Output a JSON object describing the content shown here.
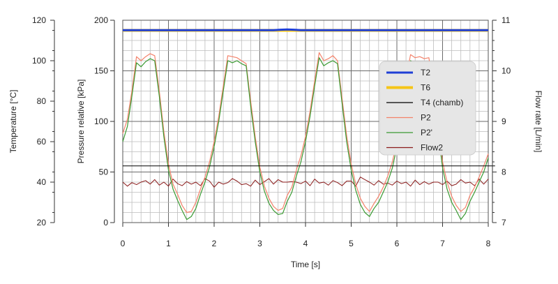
{
  "chart_data": {
    "type": "line",
    "xlabel": "Time [s]",
    "x_ticks": [
      0,
      1,
      2,
      3,
      4,
      5,
      6,
      7,
      8
    ],
    "xlim": [
      0,
      8
    ],
    "grid": true,
    "legend_placement": "right",
    "axes": {
      "pressure": {
        "label": "Pressure relative [kPa]",
        "ylim": [
          0,
          200
        ],
        "ticks": [
          0,
          50,
          100,
          150,
          200
        ],
        "side": "left-inner"
      },
      "temperature": {
        "label": "Temperature [°C]",
        "ylim": [
          20,
          120
        ],
        "ticks": [
          20,
          40,
          60,
          80,
          100,
          120
        ],
        "side": "left-outer"
      },
      "flow": {
        "label": "Flow rate [L/min]",
        "ylim": [
          7,
          11
        ],
        "ticks": [
          7,
          8,
          9,
          10,
          11
        ],
        "side": "right"
      }
    },
    "series": [
      {
        "name": "T2",
        "axis": "temperature",
        "color": "#1f3fd6",
        "width": 3,
        "x": [
          0,
          3.3,
          3.45,
          3.6,
          3.75,
          3.9,
          8
        ],
        "y": [
          115.1,
          115.1,
          115.3,
          115.4,
          115.3,
          115.1,
          115.1
        ]
      },
      {
        "name": "T6",
        "axis": "temperature",
        "color": "#f5c518",
        "width": 4,
        "x": [
          0,
          8
        ],
        "y": [
          115.0,
          115.0
        ]
      },
      {
        "name": "T4 (chamb)",
        "axis": "pressure",
        "color": "#000000",
        "width": 1,
        "x": [
          0,
          8.15
        ],
        "y": [
          56,
          56
        ]
      },
      {
        "name": "P2",
        "axis": "pressure",
        "color": "#f4826a",
        "width": 1.2,
        "x": [
          0,
          0.1,
          0.2,
          0.3,
          0.4,
          0.5,
          0.6,
          0.7,
          0.8,
          0.9,
          1.0,
          1.1,
          1.2,
          1.3,
          1.4,
          1.5,
          1.6,
          1.7,
          1.8,
          1.9,
          2.0,
          2.1,
          2.2,
          2.3,
          2.4,
          2.5,
          2.6,
          2.7,
          2.8,
          2.9,
          3.0,
          3.1,
          3.2,
          3.3,
          3.4,
          3.5,
          3.6,
          3.7,
          3.8,
          3.9,
          4.0,
          4.1,
          4.2,
          4.3,
          4.4,
          4.5,
          4.6,
          4.7,
          4.8,
          4.9,
          5.0,
          5.1,
          5.2,
          5.3,
          5.4,
          5.5,
          5.6,
          5.7,
          5.8,
          5.9,
          6.0,
          6.1,
          6.2,
          6.3,
          6.4,
          6.5,
          6.6,
          6.7,
          6.8,
          6.9,
          7.0,
          7.1,
          7.2,
          7.3,
          7.4,
          7.5,
          7.6,
          7.7,
          7.8,
          7.9,
          8.0
        ],
        "y": [
          88,
          102,
          130,
          164,
          160,
          164,
          167,
          165,
          130,
          90,
          58,
          38,
          28,
          17,
          10,
          11,
          20,
          33,
          45,
          60,
          80,
          105,
          135,
          165,
          164,
          163,
          160,
          157,
          120,
          85,
          55,
          36,
          24,
          16,
          12,
          14,
          27,
          35,
          52,
          66,
          85,
          110,
          140,
          168,
          160,
          162,
          165,
          160,
          123,
          86,
          58,
          38,
          24,
          16,
          11,
          19,
          26,
          35,
          46,
          60,
          80,
          110,
          142,
          166,
          163,
          164,
          162,
          163,
          132,
          96,
          60,
          40,
          26,
          17,
          11,
          15,
          27,
          35,
          45,
          56,
          68
        ]
      },
      {
        "name": "P2'",
        "axis": "pressure",
        "color": "#3a9a32",
        "width": 1.2,
        "x": [
          0,
          0.1,
          0.2,
          0.3,
          0.4,
          0.5,
          0.6,
          0.7,
          0.8,
          0.9,
          1.0,
          1.1,
          1.2,
          1.3,
          1.4,
          1.5,
          1.6,
          1.7,
          1.8,
          1.9,
          2.0,
          2.1,
          2.2,
          2.3,
          2.4,
          2.5,
          2.6,
          2.7,
          2.8,
          2.9,
          3.0,
          3.1,
          3.2,
          3.3,
          3.4,
          3.5,
          3.6,
          3.7,
          3.8,
          3.9,
          4.0,
          4.1,
          4.2,
          4.3,
          4.4,
          4.5,
          4.6,
          4.7,
          4.8,
          4.9,
          5.0,
          5.1,
          5.2,
          5.3,
          5.4,
          5.5,
          5.6,
          5.7,
          5.8,
          5.9,
          6.0,
          6.1,
          6.2,
          6.3,
          6.4,
          6.5,
          6.6,
          6.7,
          6.8,
          6.9,
          7.0,
          7.1,
          7.2,
          7.3,
          7.4,
          7.5,
          7.6,
          7.7,
          7.8,
          7.9,
          8.0
        ],
        "y": [
          80,
          95,
          125,
          158,
          154,
          159,
          162,
          160,
          125,
          85,
          52,
          33,
          22,
          12,
          3,
          6,
          14,
          28,
          40,
          55,
          75,
          100,
          130,
          160,
          158,
          160,
          157,
          155,
          115,
          80,
          50,
          31,
          19,
          12,
          8,
          9,
          21,
          30,
          46,
          60,
          80,
          105,
          135,
          163,
          155,
          158,
          160,
          157,
          118,
          80,
          52,
          32,
          18,
          10,
          6,
          14,
          20,
          30,
          40,
          54,
          75,
          105,
          136,
          160,
          157,
          158,
          156,
          158,
          127,
          90,
          54,
          33,
          20,
          12,
          3,
          9,
          21,
          30,
          40,
          50,
          64
        ]
      },
      {
        "name": "Flow2",
        "axis": "flow",
        "color": "#8b1a1a",
        "width": 1,
        "x": [
          0,
          0.1,
          0.2,
          0.3,
          0.4,
          0.5,
          0.6,
          0.7,
          0.8,
          0.9,
          1.0,
          1.1,
          1.2,
          1.3,
          1.4,
          1.5,
          1.6,
          1.7,
          1.8,
          1.9,
          2.0,
          2.1,
          2.2,
          2.3,
          2.4,
          2.5,
          2.6,
          2.7,
          2.8,
          2.9,
          3.0,
          3.1,
          3.2,
          3.3,
          3.4,
          3.5,
          3.6,
          3.7,
          3.8,
          3.9,
          4.0,
          4.1,
          4.2,
          4.3,
          4.4,
          4.5,
          4.6,
          4.7,
          4.8,
          4.9,
          5.0,
          5.1,
          5.2,
          5.3,
          5.4,
          5.5,
          5.6,
          5.7,
          5.8,
          5.9,
          6.0,
          6.1,
          6.2,
          6.3,
          6.4,
          6.5,
          6.6,
          6.7,
          6.8,
          6.9,
          7.0,
          7.1,
          7.2,
          7.3,
          7.4,
          7.5,
          7.6,
          7.7,
          7.8,
          7.9,
          8.0
        ],
        "y": [
          7.8,
          7.72,
          7.79,
          7.75,
          7.8,
          7.83,
          7.76,
          7.85,
          7.74,
          7.8,
          7.72,
          7.86,
          7.77,
          7.73,
          7.81,
          7.76,
          7.8,
          7.73,
          7.87,
          7.82,
          7.7,
          7.8,
          7.76,
          7.79,
          7.87,
          7.82,
          7.75,
          7.77,
          7.72,
          7.84,
          7.75,
          7.81,
          7.87,
          7.76,
          7.85,
          7.8,
          7.8,
          7.81,
          7.8,
          7.77,
          7.82,
          7.73,
          7.86,
          7.78,
          7.8,
          7.74,
          7.83,
          7.79,
          7.73,
          7.82,
          7.82,
          7.72,
          7.9,
          7.85,
          7.8,
          7.74,
          7.83,
          7.76,
          7.78,
          7.74,
          7.82,
          7.77,
          7.8,
          7.72,
          7.84,
          7.75,
          7.81,
          7.76,
          7.8,
          7.8,
          7.75,
          7.82,
          7.73,
          7.76,
          7.85,
          7.78,
          7.8,
          7.73,
          7.86,
          7.76,
          7.86
        ]
      }
    ]
  }
}
